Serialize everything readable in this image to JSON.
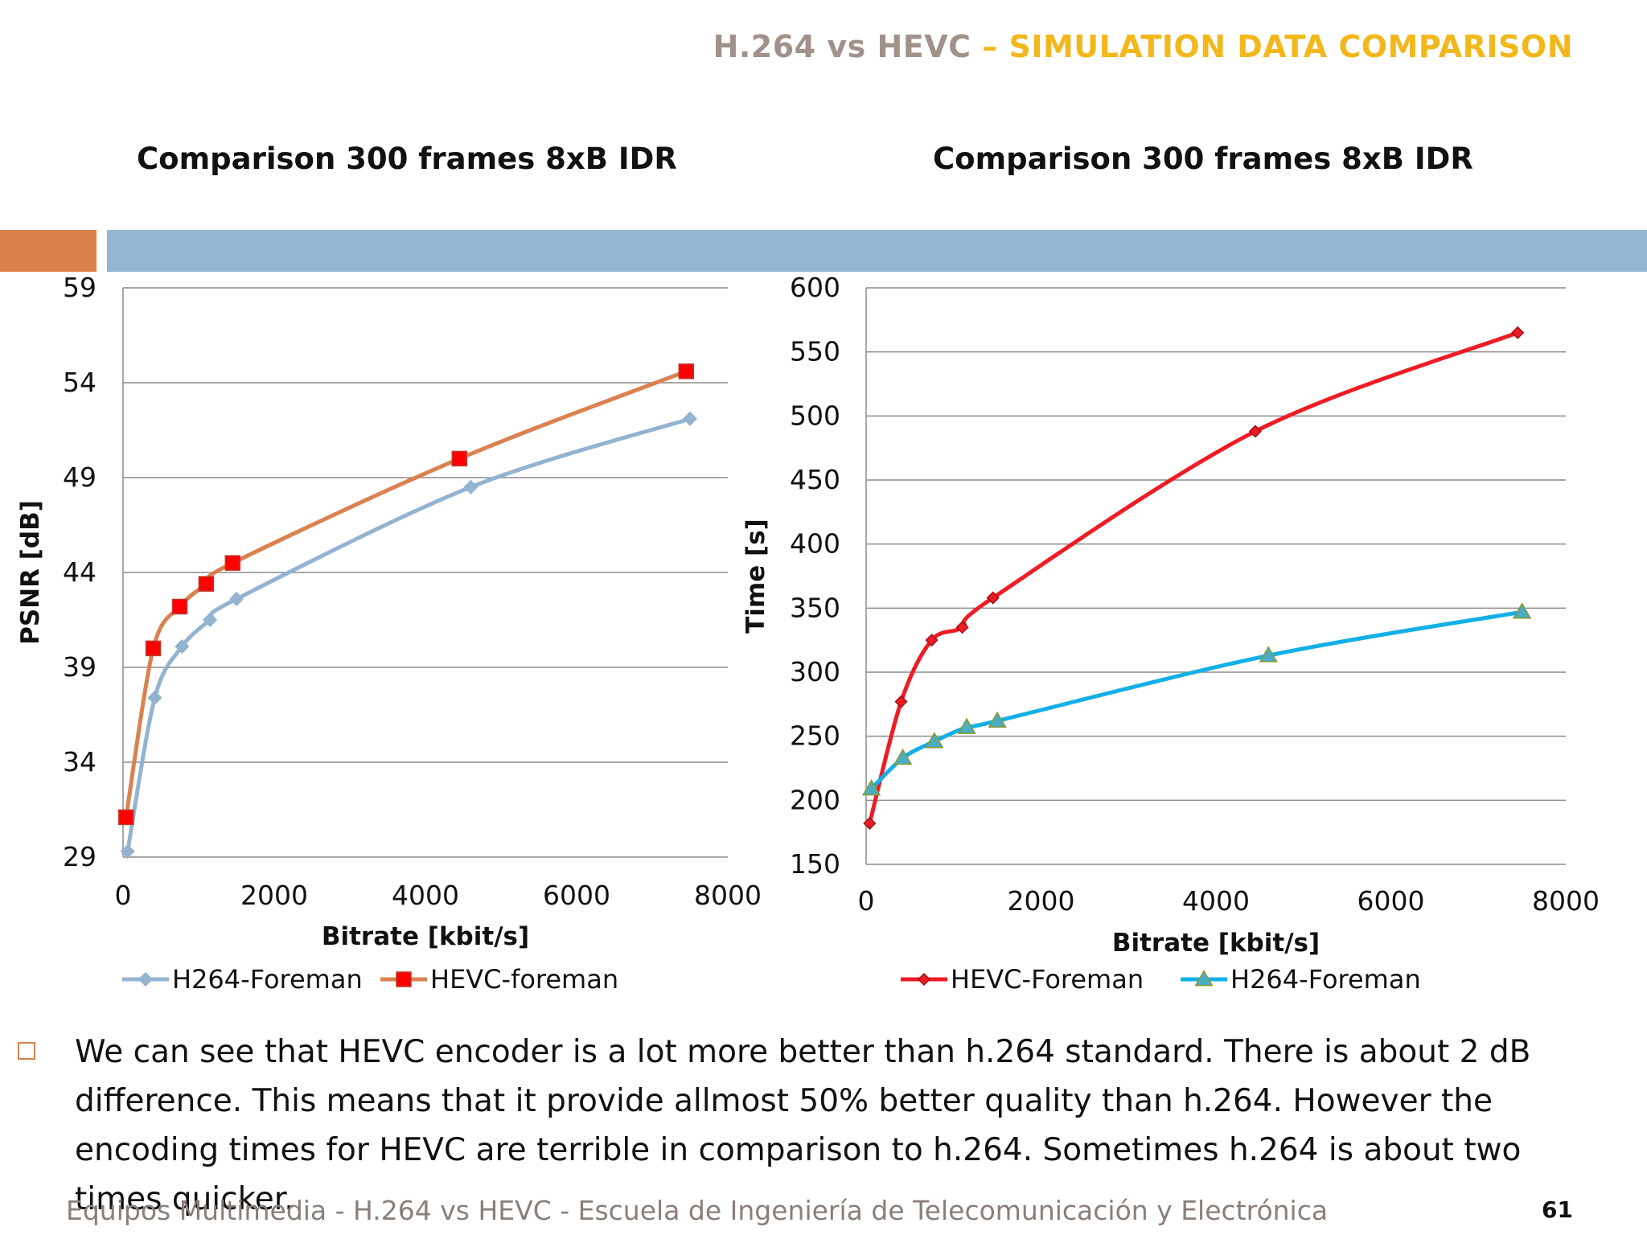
{
  "slide": {
    "title_part1": "H.264 vs HEVC",
    "title_part2": " – SIMULATION DATA COMPARISON",
    "body_text": "We can see that HEVC encoder is a lot more better than h.264 standard. There is about 2 dB difference. This means that it provide allmost 50% better quality than h.264. However the encoding times for HEVC are terrible in comparison to h.264. Sometimes h.264 is about two times quicker.",
    "footer": "Equipos Multimedia - H.264 vs HEVC - Escuela de Ingeniería de Telecomunicación y Electrónica",
    "page_number": "61"
  },
  "colors": {
    "title_gray": "#a0928a",
    "title_yellow": "#f2b81b",
    "band_orange": "#d9824a",
    "band_blue": "#93b6d1",
    "h264_psnr": "#93b3d0",
    "hevc_psnr": "#db8150",
    "hevc_time": "#ee1c24",
    "h264_time": "#13b0e6"
  },
  "chart_data": [
    {
      "type": "line",
      "title": "Comparison 300 frames 8xB IDR",
      "xlabel": "Bitrate [kbit/s]",
      "ylabel": "PSNR [dB]",
      "xlim": [
        0,
        8000
      ],
      "ylim": [
        29,
        59
      ],
      "xticks": [
        0,
        2000,
        4000,
        6000,
        8000
      ],
      "yticks": [
        29,
        34,
        39,
        44,
        49,
        54,
        59
      ],
      "grid": true,
      "legend_position": "bottom",
      "series": [
        {
          "name": "H264-Foreman",
          "marker": "diamond",
          "color": "#93b3d0",
          "x": [
            60,
            420,
            780,
            1150,
            1500,
            4600,
            7500
          ],
          "y": [
            29.3,
            37.4,
            40.1,
            41.5,
            42.6,
            48.5,
            52.1
          ]
        },
        {
          "name": "HEVC-foreman",
          "marker": "square",
          "color": "#db8150",
          "x": [
            40,
            400,
            750,
            1100,
            1450,
            4450,
            7450
          ],
          "y": [
            31.1,
            40.0,
            42.2,
            43.4,
            44.5,
            50.0,
            54.6
          ]
        }
      ]
    },
    {
      "type": "line",
      "title": "Comparison 300 frames 8xB IDR",
      "xlabel": "Bitrate [kbit/s]",
      "ylabel": "Time [s]",
      "xlim": [
        0,
        8000
      ],
      "ylim": [
        150,
        600
      ],
      "xticks": [
        0,
        2000,
        4000,
        6000,
        8000
      ],
      "yticks": [
        150,
        200,
        250,
        300,
        350,
        400,
        450,
        500,
        550,
        600
      ],
      "grid": true,
      "legend_position": "bottom",
      "series": [
        {
          "name": "HEVC-Foreman",
          "marker": "diamond",
          "color": "#ee1c24",
          "x": [
            40,
            400,
            750,
            1100,
            1450,
            4450,
            7450
          ],
          "y": [
            182,
            277,
            325,
            335,
            358,
            488,
            565
          ]
        },
        {
          "name": "H264-Foreman",
          "marker": "triangle",
          "color": "#13b0e6",
          "x": [
            60,
            420,
            780,
            1150,
            1500,
            4600,
            7500
          ],
          "y": [
            209,
            233,
            246,
            257,
            262,
            313,
            347
          ]
        }
      ]
    }
  ]
}
